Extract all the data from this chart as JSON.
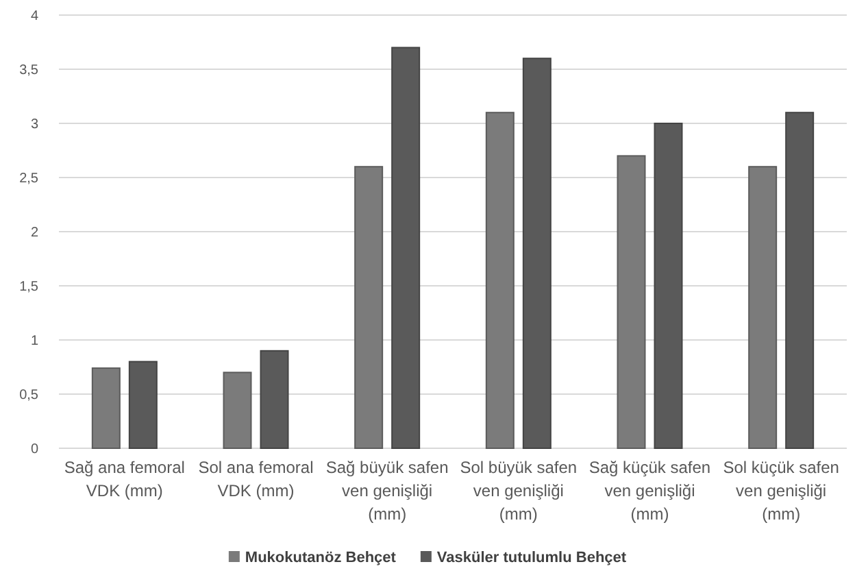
{
  "chart_data": {
    "type": "bar",
    "categories": [
      "Sağ ana femoral VDK (mm)",
      "Sol ana femoral VDK (mm)",
      "Sağ büyük safen ven genişliği (mm)",
      "Sol büyük safen ven genişliği (mm)",
      "Sağ küçük safen ven genişliği (mm)",
      "Sol küçük safen ven genişliği (mm)"
    ],
    "series": [
      {
        "name": "Mukokutanöz Behçet",
        "color": "#7b7b7b",
        "values": [
          0.74,
          0.7,
          2.6,
          3.1,
          2.7,
          2.6
        ]
      },
      {
        "name": "Vasküler tutulumlu Behçet",
        "color": "#5a5a5a",
        "values": [
          0.8,
          0.9,
          3.7,
          3.6,
          3.0,
          3.1
        ]
      }
    ],
    "ylim": [
      0,
      4
    ],
    "yticks": [
      0,
      {
        "value": 0.5,
        "label": "0,5"
      },
      1,
      {
        "value": 1.5,
        "label": "1,5"
      },
      2,
      {
        "value": 2.5,
        "label": "2,5"
      },
      3,
      {
        "value": 3.5,
        "label": "3,5"
      },
      4
    ],
    "grid": "y",
    "legend": "bottom"
  }
}
